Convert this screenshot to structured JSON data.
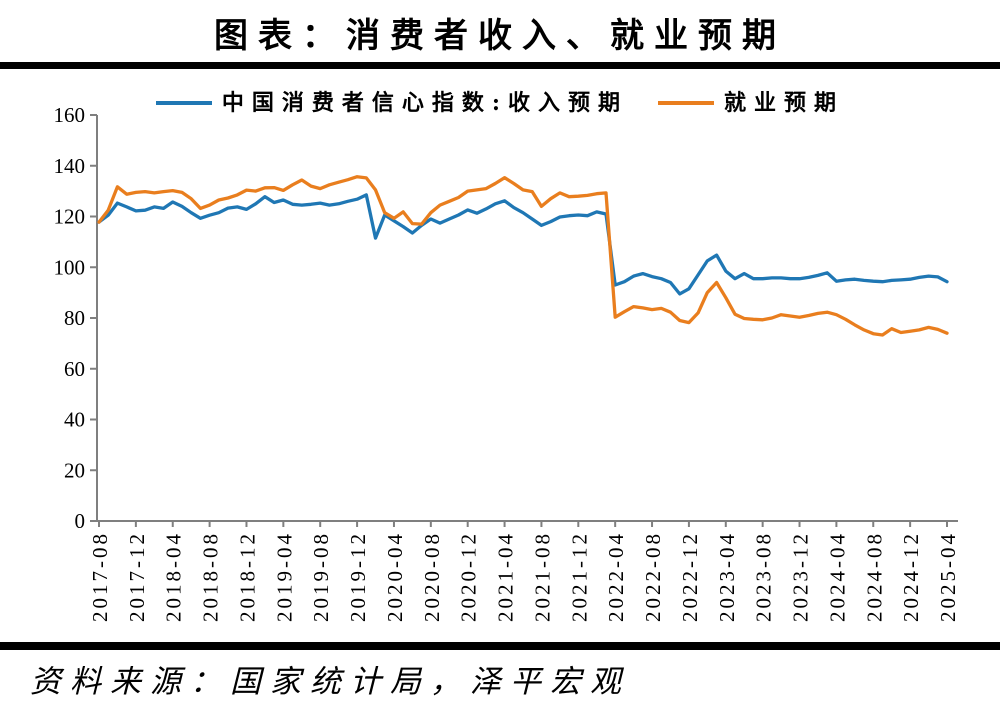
{
  "title": "图表：消费者收入、就业预期",
  "source": "资料来源：国家统计局，泽平宏观",
  "colors": {
    "income_line": "#1f77b4",
    "employment_line": "#e97e1e",
    "axis": "#7f7f7f",
    "divider": "#000000"
  },
  "chart_data": {
    "type": "line",
    "title": "图表：消费者收入、就业预期",
    "xlabel": "",
    "ylabel": "",
    "ylim": [
      0,
      160
    ],
    "y_ticks": [
      0,
      20,
      40,
      60,
      80,
      100,
      120,
      140,
      160
    ],
    "x_tick_every": 4,
    "grid": false,
    "legend_position": "top-center",
    "x": [
      "2017-08",
      "2017-09",
      "2017-10",
      "2017-11",
      "2017-12",
      "2018-01",
      "2018-02",
      "2018-03",
      "2018-04",
      "2018-05",
      "2018-06",
      "2018-07",
      "2018-08",
      "2018-09",
      "2018-10",
      "2018-11",
      "2018-12",
      "2019-01",
      "2019-02",
      "2019-03",
      "2019-04",
      "2019-05",
      "2019-06",
      "2019-07",
      "2019-08",
      "2019-09",
      "2019-10",
      "2019-11",
      "2019-12",
      "2020-01",
      "2020-02",
      "2020-03",
      "2020-04",
      "2020-05",
      "2020-06",
      "2020-07",
      "2020-08",
      "2020-09",
      "2020-10",
      "2020-11",
      "2020-12",
      "2021-01",
      "2021-02",
      "2021-03",
      "2021-04",
      "2021-05",
      "2021-06",
      "2021-07",
      "2021-08",
      "2021-09",
      "2021-10",
      "2021-11",
      "2021-12",
      "2022-01",
      "2022-02",
      "2022-03",
      "2022-04",
      "2022-05",
      "2022-06",
      "2022-07",
      "2022-08",
      "2022-09",
      "2022-10",
      "2022-11",
      "2022-12",
      "2023-01",
      "2023-02",
      "2023-03",
      "2023-04",
      "2023-05",
      "2023-06",
      "2023-07",
      "2023-08",
      "2023-09",
      "2023-10",
      "2023-11",
      "2023-12",
      "2024-01",
      "2024-02",
      "2024-03",
      "2024-04",
      "2024-05",
      "2024-06",
      "2024-07",
      "2024-08",
      "2024-09",
      "2024-10",
      "2024-11",
      "2024-12",
      "2025-01",
      "2025-02",
      "2025-03",
      "2025-04"
    ],
    "series": [
      {
        "name": "中国消费者信心指数:收入预期",
        "color": "#1f77b4",
        "values": [
          117.8,
          120.5,
          125.3,
          123.8,
          122.2,
          122.5,
          123.8,
          123.2,
          125.7,
          124.0,
          121.5,
          119.3,
          120.5,
          121.5,
          123.3,
          123.8,
          122.8,
          125.0,
          127.8,
          125.5,
          126.5,
          124.8,
          124.5,
          124.8,
          125.3,
          124.5,
          125.0,
          126.0,
          126.8,
          128.5,
          111.5,
          120.6,
          118.3,
          116.0,
          113.5,
          116.5,
          119.0,
          117.4,
          119.0,
          120.6,
          122.6,
          121.3,
          123.0,
          125.0,
          126.2,
          123.5,
          121.5,
          119.0,
          116.5,
          118.0,
          119.8,
          120.3,
          120.6,
          120.3,
          121.8,
          121.0,
          93.0,
          94.3,
          96.5,
          97.5,
          96.3,
          95.5,
          94.0,
          89.5,
          91.5,
          97.0,
          102.5,
          104.8,
          98.5,
          95.5,
          97.5,
          95.5,
          95.5,
          95.8,
          95.8,
          95.5,
          95.5,
          96.0,
          96.8,
          97.8,
          94.5,
          95.0,
          95.3,
          94.8,
          94.5,
          94.3,
          94.8,
          95.0,
          95.3,
          96.0,
          96.5,
          96.2,
          94.3
        ]
      },
      {
        "name": "就业预期",
        "color": "#e97e1e",
        "values": [
          117.8,
          122.5,
          131.7,
          128.8,
          129.5,
          129.8,
          129.3,
          129.8,
          130.2,
          129.5,
          127.0,
          123.2,
          124.5,
          126.5,
          127.3,
          128.5,
          130.4,
          130.0,
          131.3,
          131.4,
          130.3,
          132.5,
          134.4,
          132.0,
          131.0,
          132.5,
          133.5,
          134.5,
          135.7,
          135.2,
          130.5,
          121.5,
          119.3,
          121.8,
          117.2,
          117.0,
          121.5,
          124.5,
          126.0,
          127.5,
          130.0,
          130.5,
          131.0,
          133.0,
          135.3,
          133.0,
          130.5,
          129.8,
          124.0,
          127.0,
          129.3,
          127.8,
          128.0,
          128.3,
          129.0,
          129.3,
          80.3,
          82.5,
          84.5,
          84.0,
          83.3,
          83.8,
          82.3,
          79.0,
          78.2,
          82.0,
          90.0,
          94.0,
          88.0,
          81.5,
          79.8,
          79.5,
          79.3,
          80.0,
          81.3,
          80.8,
          80.3,
          81.0,
          81.8,
          82.3,
          81.3,
          79.5,
          77.3,
          75.3,
          73.8,
          73.3,
          75.8,
          74.3,
          74.8,
          75.3,
          76.3,
          75.5,
          74.0
        ]
      }
    ]
  }
}
